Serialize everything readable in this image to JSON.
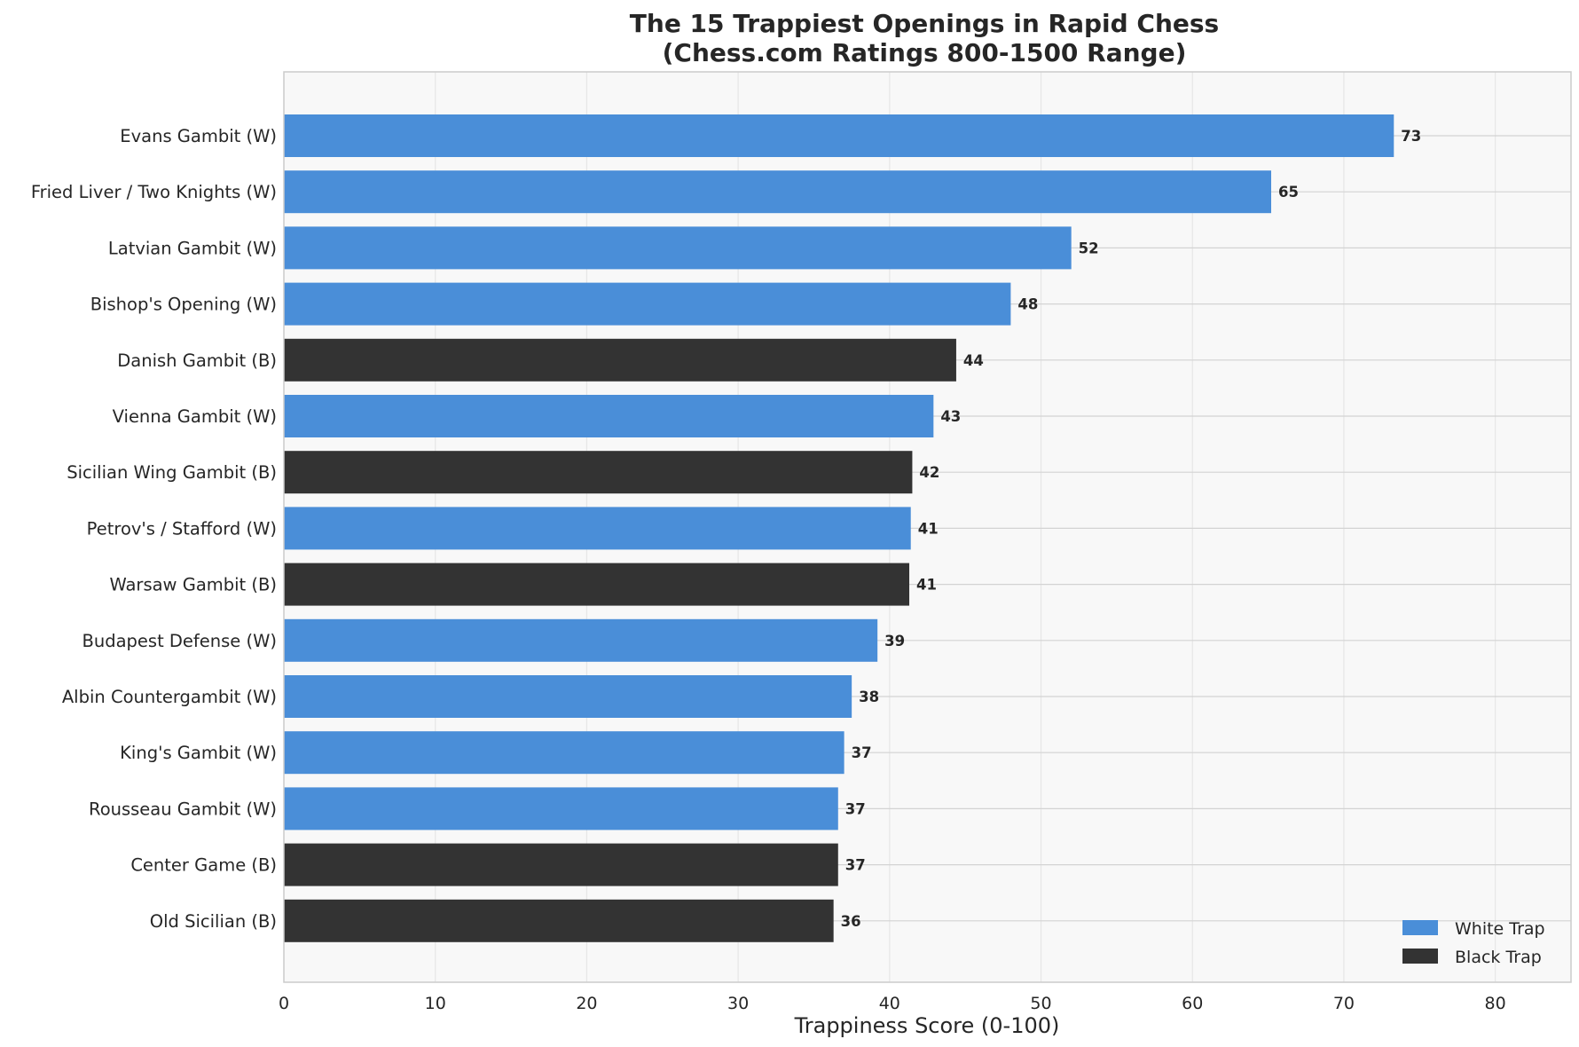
{
  "chart_data": {
    "type": "bar",
    "orientation": "horizontal",
    "title_line1": "The 15 Trappiest Openings in Rapid Chess",
    "title_line2": "(Chess.com Ratings 800-1500 Range)",
    "xlabel": "Trappiness Score (0-100)",
    "ylabel": "",
    "xlim": [
      0,
      85
    ],
    "xticks": [
      0,
      10,
      20,
      30,
      40,
      50,
      60,
      70,
      80
    ],
    "grid": true,
    "legend_position": "bottom-right",
    "colors": {
      "White Trap": "#4a8ed8",
      "Black Trap": "#333333"
    },
    "legend": [
      "White Trap",
      "Black Trap"
    ],
    "bars": [
      {
        "label": "Evans Gambit (W)",
        "value": 73.3,
        "display": "73",
        "group": "White Trap"
      },
      {
        "label": "Fried Liver / Two Knights (W)",
        "value": 65.2,
        "display": "65",
        "group": "White Trap"
      },
      {
        "label": "Latvian Gambit (W)",
        "value": 52.0,
        "display": "52",
        "group": "White Trap"
      },
      {
        "label": "Bishop's Opening (W)",
        "value": 48.0,
        "display": "48",
        "group": "White Trap"
      },
      {
        "label": "Danish Gambit (B)",
        "value": 44.4,
        "display": "44",
        "group": "Black Trap"
      },
      {
        "label": "Vienna Gambit (W)",
        "value": 42.9,
        "display": "43",
        "group": "White Trap"
      },
      {
        "label": "Sicilian Wing Gambit (B)",
        "value": 41.5,
        "display": "42",
        "group": "Black Trap"
      },
      {
        "label": "Petrov's / Stafford (W)",
        "value": 41.4,
        "display": "41",
        "group": "White Trap"
      },
      {
        "label": "Warsaw Gambit (B)",
        "value": 41.3,
        "display": "41",
        "group": "Black Trap"
      },
      {
        "label": "Budapest Defense (W)",
        "value": 39.2,
        "display": "39",
        "group": "White Trap"
      },
      {
        "label": "Albin Countergambit (W)",
        "value": 37.5,
        "display": "38",
        "group": "White Trap"
      },
      {
        "label": "King's Gambit (W)",
        "value": 37.0,
        "display": "37",
        "group": "White Trap"
      },
      {
        "label": "Rousseau Gambit (W)",
        "value": 36.6,
        "display": "37",
        "group": "White Trap"
      },
      {
        "label": "Center Game (B)",
        "value": 36.6,
        "display": "37",
        "group": "Black Trap"
      },
      {
        "label": "Old Sicilian (B)",
        "value": 36.3,
        "display": "36",
        "group": "Black Trap"
      }
    ]
  }
}
